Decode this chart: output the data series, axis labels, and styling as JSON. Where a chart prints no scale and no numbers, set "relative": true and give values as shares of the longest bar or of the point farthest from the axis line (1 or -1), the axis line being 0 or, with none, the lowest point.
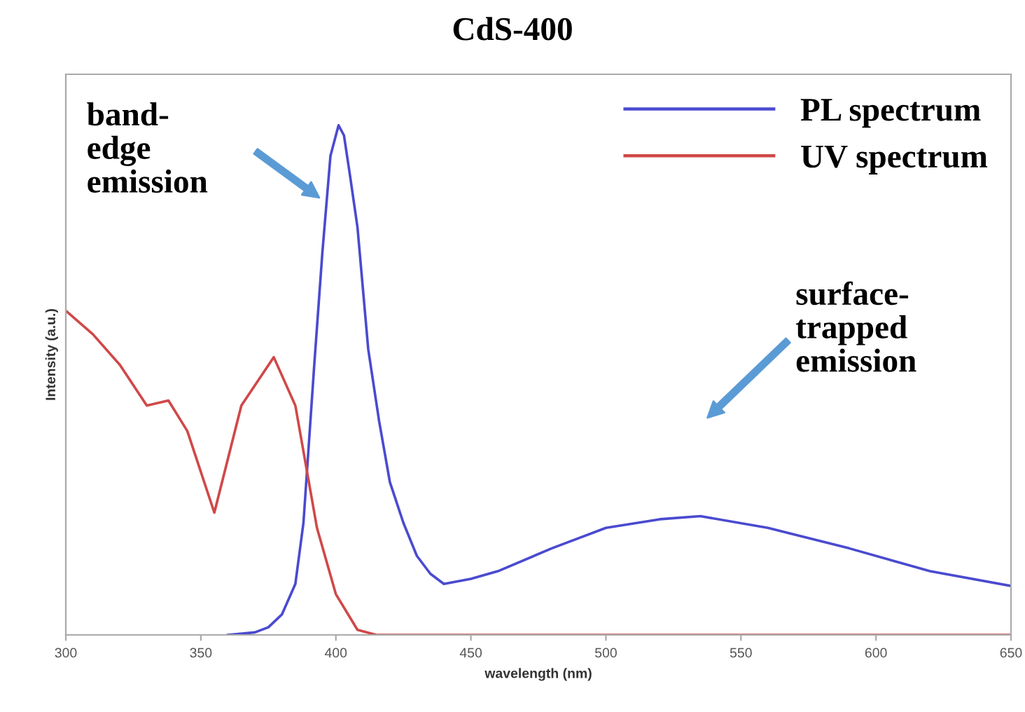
{
  "chart_data": {
    "type": "line",
    "title": "CdS-400",
    "xlabel": "wavelength (nm)",
    "ylabel": "Intensity (a.u.)",
    "relative": true,
    "xlim": [
      300,
      650
    ],
    "xticks": [
      300,
      350,
      400,
      450,
      500,
      550,
      600,
      650
    ],
    "grid": false,
    "legend": "top right",
    "marker": "none",
    "line_style": "solid",
    "series": [
      {
        "name": "PL spectrum",
        "color": "#4a4ad0",
        "x": [
          360,
          370,
          375,
          380,
          385,
          388,
          392,
          395,
          398,
          401,
          403,
          405,
          408,
          412,
          416,
          420,
          425,
          430,
          435,
          440,
          450,
          460,
          480,
          500,
          520,
          535,
          560,
          590,
          620,
          650
        ],
        "values": [
          0,
          0.005,
          0.015,
          0.04,
          0.1,
          0.22,
          0.53,
          0.75,
          0.94,
          1,
          0.98,
          0.91,
          0.8,
          0.56,
          0.42,
          0.3,
          0.22,
          0.155,
          0.12,
          0.1,
          0.11,
          0.125,
          0.17,
          0.21,
          0.227,
          0.233,
          0.21,
          0.17,
          0.125,
          0.096
        ]
      },
      {
        "name": "UV spectrum",
        "color": "#d04848",
        "x": [
          300,
          310,
          320,
          330,
          338,
          345,
          355,
          365,
          377,
          385,
          393,
          400,
          408,
          415,
          450,
          500,
          550,
          600,
          650
        ],
        "values": [
          0.636,
          0.59,
          0.53,
          0.45,
          0.46,
          0.4,
          0.24,
          0.45,
          0.545,
          0.45,
          0.21,
          0.08,
          0.01,
          0,
          0,
          0,
          0,
          0,
          0
        ]
      }
    ],
    "annotations": [
      "band-\nedge\nemission",
      "surface-\ntrapped\nemission"
    ]
  }
}
